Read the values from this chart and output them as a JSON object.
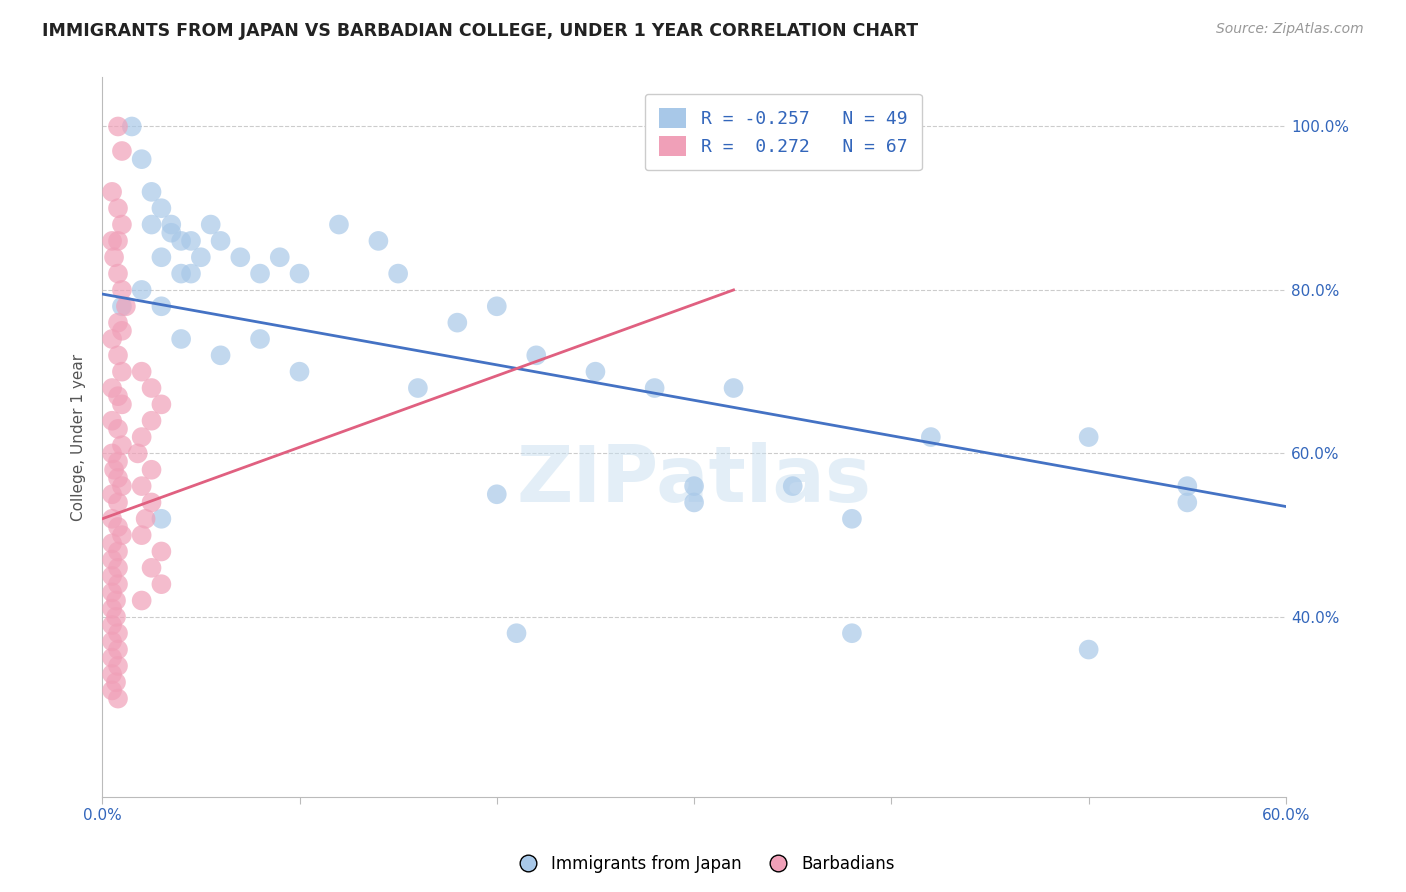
{
  "title": "IMMIGRANTS FROM JAPAN VS BARBADIAN COLLEGE, UNDER 1 YEAR CORRELATION CHART",
  "source": "Source: ZipAtlas.com",
  "ylabel": "College, Under 1 year",
  "xlim": [
    0.0,
    0.6
  ],
  "ylim": [
    0.18,
    1.06
  ],
  "xtick_labels": [
    "0.0%",
    "",
    "",
    "",
    "",
    "",
    "60.0%"
  ],
  "xtick_values": [
    0.0,
    0.1,
    0.2,
    0.3,
    0.4,
    0.5,
    0.6
  ],
  "ytick_labels": [
    "40.0%",
    "60.0%",
    "80.0%",
    "100.0%"
  ],
  "ytick_values": [
    0.4,
    0.6,
    0.8,
    1.0
  ],
  "legend_blue_r": "-0.257",
  "legend_blue_n": "49",
  "legend_pink_r": "0.272",
  "legend_pink_n": "67",
  "blue_color": "#a8c8e8",
  "pink_color": "#f0a0b8",
  "blue_line_color": "#4472c4",
  "pink_line_color": "#e06080",
  "grid_color": "#cccccc",
  "watermark": "ZIPatlas",
  "blue_scatter_x": [
    0.015,
    0.02,
    0.025,
    0.03,
    0.025,
    0.035,
    0.04,
    0.035,
    0.03,
    0.04,
    0.045,
    0.05,
    0.045,
    0.055,
    0.06,
    0.07,
    0.08,
    0.09,
    0.1,
    0.12,
    0.14,
    0.15,
    0.18,
    0.2,
    0.22,
    0.25,
    0.28,
    0.3,
    0.32,
    0.35,
    0.38,
    0.42,
    0.5,
    0.55,
    0.01,
    0.02,
    0.03,
    0.04,
    0.06,
    0.08,
    0.1,
    0.16,
    0.2,
    0.3,
    0.38,
    0.5,
    0.55,
    0.21,
    0.03
  ],
  "blue_scatter_y": [
    1.0,
    0.96,
    0.92,
    0.9,
    0.88,
    0.87,
    0.86,
    0.88,
    0.84,
    0.82,
    0.86,
    0.84,
    0.82,
    0.88,
    0.86,
    0.84,
    0.82,
    0.84,
    0.82,
    0.88,
    0.86,
    0.82,
    0.76,
    0.78,
    0.72,
    0.7,
    0.68,
    0.56,
    0.68,
    0.56,
    0.52,
    0.62,
    0.62,
    0.56,
    0.78,
    0.8,
    0.78,
    0.74,
    0.72,
    0.74,
    0.7,
    0.68,
    0.55,
    0.54,
    0.38,
    0.36,
    0.54,
    0.38,
    0.52
  ],
  "pink_scatter_x": [
    0.008,
    0.01,
    0.005,
    0.008,
    0.01,
    0.005,
    0.008,
    0.006,
    0.008,
    0.01,
    0.012,
    0.008,
    0.01,
    0.005,
    0.008,
    0.01,
    0.005,
    0.008,
    0.01,
    0.005,
    0.008,
    0.01,
    0.005,
    0.008,
    0.006,
    0.008,
    0.01,
    0.005,
    0.008,
    0.005,
    0.008,
    0.01,
    0.005,
    0.008,
    0.005,
    0.008,
    0.005,
    0.008,
    0.005,
    0.007,
    0.005,
    0.007,
    0.005,
    0.008,
    0.005,
    0.008,
    0.005,
    0.008,
    0.005,
    0.007,
    0.005,
    0.008,
    0.02,
    0.025,
    0.03,
    0.025,
    0.02,
    0.018,
    0.025,
    0.02,
    0.025,
    0.022,
    0.02,
    0.03,
    0.025,
    0.03,
    0.02
  ],
  "pink_scatter_y": [
    1.0,
    0.97,
    0.92,
    0.9,
    0.88,
    0.86,
    0.86,
    0.84,
    0.82,
    0.8,
    0.78,
    0.76,
    0.75,
    0.74,
    0.72,
    0.7,
    0.68,
    0.67,
    0.66,
    0.64,
    0.63,
    0.61,
    0.6,
    0.59,
    0.58,
    0.57,
    0.56,
    0.55,
    0.54,
    0.52,
    0.51,
    0.5,
    0.49,
    0.48,
    0.47,
    0.46,
    0.45,
    0.44,
    0.43,
    0.42,
    0.41,
    0.4,
    0.39,
    0.38,
    0.37,
    0.36,
    0.35,
    0.34,
    0.33,
    0.32,
    0.31,
    0.3,
    0.7,
    0.68,
    0.66,
    0.64,
    0.62,
    0.6,
    0.58,
    0.56,
    0.54,
    0.52,
    0.5,
    0.48,
    0.46,
    0.44,
    0.42
  ],
  "blue_line_x": [
    0.0,
    0.6
  ],
  "blue_line_y": [
    0.795,
    0.535
  ],
  "pink_line_x": [
    0.0,
    0.32
  ],
  "pink_line_y": [
    0.52,
    0.8
  ]
}
